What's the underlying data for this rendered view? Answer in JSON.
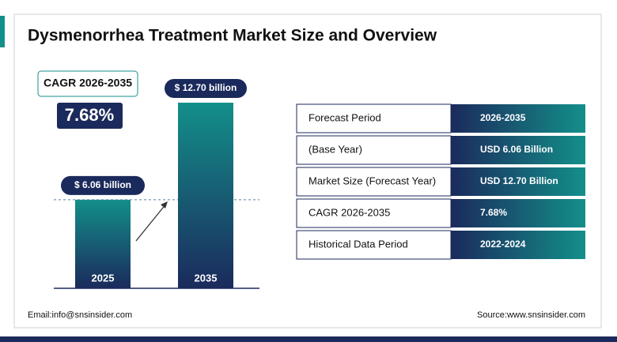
{
  "chart_data": {
    "type": "bar",
    "title": "Dysmenorrhea Treatment Market Size and Overview",
    "categories": [
      "2025",
      "2035"
    ],
    "values": [
      6.06,
      12.7
    ],
    "value_labels": [
      "$ 6.06 billion",
      "$ 12.70 billion"
    ],
    "colors": [
      "#138f8a",
      "#1b2a5c"
    ]
  },
  "cagr": {
    "label": "CAGR 2026-2035",
    "value": "7.68%"
  },
  "table": {
    "rows": [
      [
        "Forecast Period",
        "2026-2035"
      ],
      [
        "(Base Year)",
        "USD  6.06 Billion"
      ],
      [
        "Market Size (Forecast Year)",
        "USD 12.70 Billion"
      ],
      [
        "CAGR 2026-2035",
        "7.68%"
      ],
      [
        "Historical Data Period",
        "2022-2024"
      ]
    ]
  },
  "footer": {
    "email": "Email:info@snsinsider.com",
    "source": "Source:www.snsinsider.com"
  }
}
